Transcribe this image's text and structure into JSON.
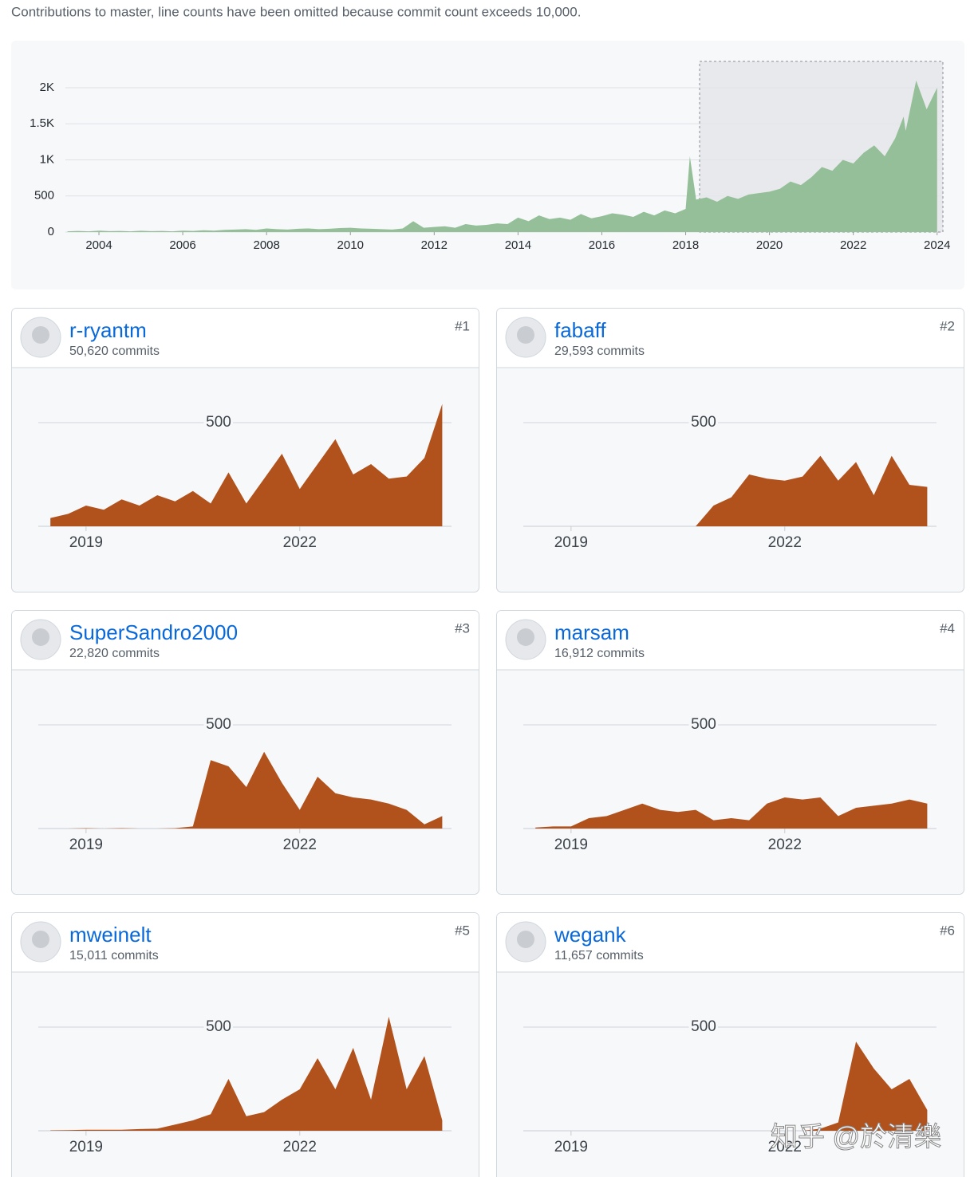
{
  "header": {
    "text": "Contributions to master, line counts have been omitted because commit count exceeds 10,000."
  },
  "main_chart": {
    "type": "area",
    "color": "#94bf98",
    "grid": true,
    "xlim": [
      2003.2,
      2024.1
    ],
    "ylim": [
      0,
      2000
    ],
    "xticks": [
      2004,
      2006,
      2008,
      2010,
      2012,
      2014,
      2016,
      2018,
      2020,
      2022,
      2024
    ],
    "yticks": [
      0,
      500,
      {
        "value": 1000,
        "label": "1K"
      },
      {
        "value": 1500,
        "label": "1.5K"
      },
      {
        "value": 2000,
        "label": "2K"
      }
    ],
    "x": [
      2003.25,
      2003.5,
      2003.75,
      2004,
      2004.25,
      2004.5,
      2004.75,
      2005,
      2005.25,
      2005.5,
      2005.75,
      2006,
      2006.25,
      2006.5,
      2006.75,
      2007,
      2007.25,
      2007.5,
      2007.75,
      2008,
      2008.25,
      2008.5,
      2008.75,
      2009,
      2009.25,
      2009.5,
      2009.75,
      2010,
      2010.25,
      2010.5,
      2010.75,
      2011,
      2011.25,
      2011.5,
      2011.75,
      2012,
      2012.25,
      2012.5,
      2012.75,
      2013,
      2013.25,
      2013.5,
      2013.75,
      2014,
      2014.25,
      2014.5,
      2014.75,
      2015,
      2015.25,
      2015.5,
      2015.75,
      2016,
      2016.25,
      2016.5,
      2016.75,
      2017,
      2017.25,
      2017.5,
      2017.75,
      2018,
      2018.1,
      2018.25,
      2018.5,
      2018.75,
      2019,
      2019.25,
      2019.5,
      2019.75,
      2020,
      2020.25,
      2020.5,
      2020.75,
      2021,
      2021.25,
      2021.5,
      2021.75,
      2022,
      2022.25,
      2022.5,
      2022.75,
      2023,
      2023.2,
      2023.25,
      2023.5,
      2023.75,
      2024
    ],
    "values": [
      10,
      15,
      10,
      20,
      12,
      15,
      10,
      18,
      12,
      15,
      10,
      20,
      15,
      25,
      20,
      30,
      35,
      40,
      30,
      50,
      40,
      35,
      45,
      50,
      40,
      45,
      55,
      60,
      50,
      45,
      40,
      35,
      50,
      150,
      60,
      70,
      80,
      60,
      110,
      90,
      100,
      120,
      110,
      200,
      150,
      230,
      180,
      200,
      170,
      250,
      190,
      220,
      260,
      240,
      210,
      280,
      230,
      300,
      260,
      320,
      1050,
      450,
      480,
      420,
      500,
      460,
      520,
      540,
      560,
      600,
      700,
      650,
      760,
      900,
      850,
      1000,
      950,
      1100,
      1200,
      1050,
      1300,
      1600,
      1400,
      2100,
      1700,
      2000
    ]
  },
  "contributors": [
    {
      "name": "r-ryantm",
      "commits": "50,620 commits",
      "rank": "#1",
      "chart": {
        "type": "area",
        "color": "#b1521d",
        "xlim": [
          2018.33,
          2024.13
        ],
        "ylim": [
          0,
          600
        ],
        "yticks": [
          500
        ],
        "xticks": [
          2019,
          2022
        ],
        "x": [
          2018.5,
          2018.75,
          2019,
          2019.25,
          2019.5,
          2019.75,
          2020,
          2020.25,
          2020.5,
          2020.75,
          2021,
          2021.25,
          2021.5,
          2021.75,
          2022,
          2022.25,
          2022.5,
          2022.75,
          2023,
          2023.25,
          2023.5,
          2023.75,
          2024
        ],
        "values": [
          40,
          60,
          100,
          80,
          130,
          100,
          150,
          120,
          170,
          110,
          260,
          110,
          230,
          350,
          180,
          300,
          420,
          250,
          300,
          230,
          240,
          330,
          590
        ]
      }
    },
    {
      "name": "fabaff",
      "commits": "29,593 commits",
      "rank": "#2",
      "chart": {
        "type": "area",
        "color": "#b1521d",
        "xlim": [
          2018.33,
          2024.13
        ],
        "ylim": [
          0,
          600
        ],
        "yticks": [
          500
        ],
        "xticks": [
          2019,
          2022
        ],
        "x": [
          2018.5,
          2018.75,
          2019,
          2019.25,
          2019.5,
          2019.75,
          2020,
          2020.25,
          2020.5,
          2020.75,
          2021,
          2021.25,
          2021.5,
          2021.75,
          2022,
          2022.25,
          2022.5,
          2022.75,
          2023,
          2023.25,
          2023.5,
          2023.75,
          2024
        ],
        "values": [
          0,
          0,
          0,
          0,
          0,
          0,
          0,
          0,
          0,
          0,
          100,
          140,
          250,
          230,
          220,
          240,
          340,
          220,
          310,
          150,
          340,
          200,
          190
        ]
      }
    },
    {
      "name": "SuperSandro2000",
      "commits": "22,820 commits",
      "rank": "#3",
      "chart": {
        "type": "area",
        "color": "#b1521d",
        "xlim": [
          2018.33,
          2024.13
        ],
        "ylim": [
          0,
          600
        ],
        "yticks": [
          500
        ],
        "xticks": [
          2019,
          2022
        ],
        "x": [
          2018.5,
          2018.75,
          2019,
          2019.25,
          2019.5,
          2019.75,
          2020,
          2020.25,
          2020.5,
          2020.75,
          2021,
          2021.25,
          2021.5,
          2021.75,
          2022,
          2022.25,
          2022.5,
          2022.75,
          2023,
          2023.25,
          2023.5,
          2023.75,
          2024
        ],
        "values": [
          0,
          0,
          2,
          0,
          2,
          0,
          0,
          2,
          10,
          330,
          300,
          200,
          370,
          220,
          90,
          250,
          170,
          150,
          140,
          120,
          90,
          20,
          60
        ]
      }
    },
    {
      "name": "marsam",
      "commits": "16,912 commits",
      "rank": "#4",
      "chart": {
        "type": "area",
        "color": "#b1521d",
        "xlim": [
          2018.33,
          2024.13
        ],
        "ylim": [
          0,
          600
        ],
        "yticks": [
          500
        ],
        "xticks": [
          2019,
          2022
        ],
        "x": [
          2018.5,
          2018.75,
          2019,
          2019.25,
          2019.5,
          2019.75,
          2020,
          2020.25,
          2020.5,
          2020.75,
          2021,
          2021.25,
          2021.5,
          2021.75,
          2022,
          2022.25,
          2022.5,
          2022.75,
          2023,
          2023.25,
          2023.5,
          2023.75,
          2024
        ],
        "values": [
          5,
          10,
          10,
          50,
          60,
          90,
          120,
          90,
          80,
          90,
          40,
          50,
          40,
          120,
          150,
          140,
          150,
          60,
          100,
          110,
          120,
          140,
          120
        ]
      }
    },
    {
      "name": "mweinelt",
      "commits": "15,011 commits",
      "rank": "#5",
      "chart": {
        "type": "area",
        "color": "#b1521d",
        "xlim": [
          2018.33,
          2024.13
        ],
        "ylim": [
          0,
          600
        ],
        "yticks": [
          500
        ],
        "xticks": [
          2019,
          2022
        ],
        "x": [
          2018.5,
          2018.75,
          2019,
          2019.25,
          2019.5,
          2019.75,
          2020,
          2020.25,
          2020.5,
          2020.75,
          2021,
          2021.25,
          2021.5,
          2021.75,
          2022,
          2022.25,
          2022.5,
          2022.75,
          2023,
          2023.25,
          2023.5,
          2023.75,
          2024
        ],
        "values": [
          2,
          3,
          5,
          5,
          5,
          8,
          10,
          30,
          50,
          80,
          250,
          70,
          90,
          150,
          200,
          350,
          200,
          400,
          150,
          550,
          200,
          360,
          50
        ]
      }
    },
    {
      "name": "wegank",
      "commits": "11,657 commits",
      "rank": "#6",
      "chart": {
        "type": "area",
        "color": "#b1521d",
        "xlim": [
          2018.33,
          2024.13
        ],
        "ylim": [
          0,
          600
        ],
        "yticks": [
          500
        ],
        "xticks": [
          2019,
          2022
        ],
        "x": [
          2018.5,
          2018.75,
          2019,
          2019.25,
          2019.5,
          2019.75,
          2020,
          2020.25,
          2020.5,
          2020.75,
          2021,
          2021.25,
          2021.5,
          2021.75,
          2022,
          2022.25,
          2022.5,
          2022.75,
          2023,
          2023.25,
          2023.5,
          2023.75,
          2024
        ],
        "values": [
          0,
          0,
          0,
          0,
          0,
          0,
          0,
          0,
          0,
          0,
          0,
          0,
          0,
          0,
          0,
          0,
          10,
          40,
          430,
          300,
          200,
          250,
          100
        ]
      }
    }
  ],
  "watermark": "知乎 @於清樂"
}
